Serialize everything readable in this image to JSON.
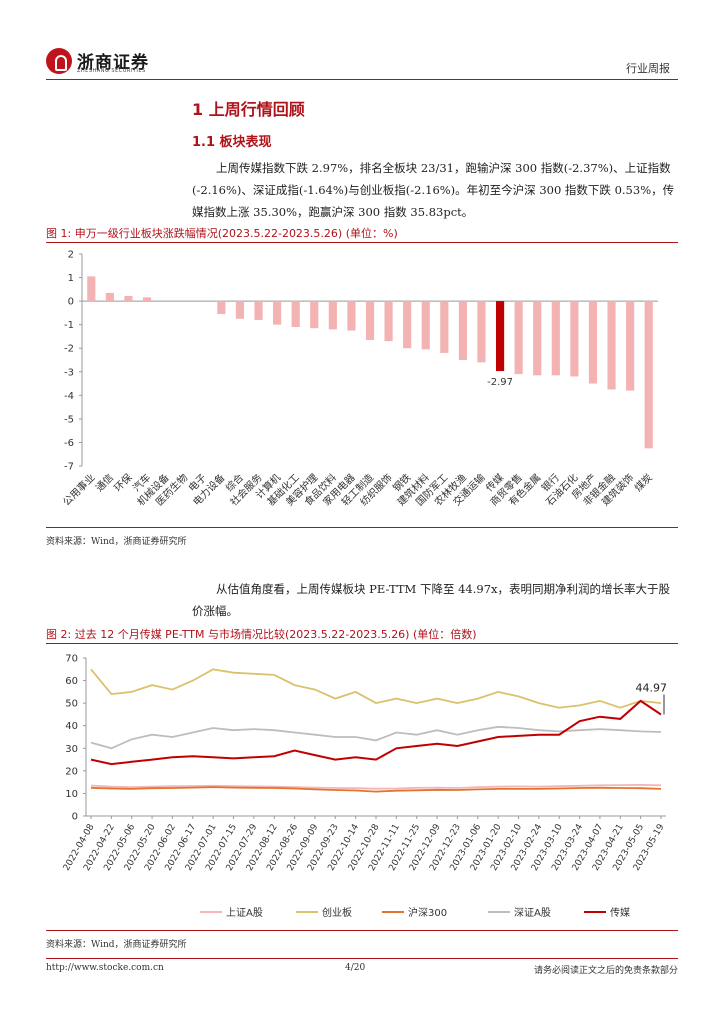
{
  "header": {
    "logo_cn": "浙商证券",
    "logo_en": "ZHESHANG SECURITIES",
    "report_type": "行业周报"
  },
  "section1": {
    "title": "1 上周行情回顾"
  },
  "section11": {
    "title": "1.1 板块表现"
  },
  "para1": "上周传媒指数下跌 2.97%，排名全板块 23/31，跑输沪深 300 指数(-2.37%)、上证指数(-2.16%)、深证成指(-1.64%)与创业板指(-2.16%)。年初至今沪深 300 指数下跌 0.53%，传媒指数上涨 35.30%，跑赢沪深 300 指数 35.83pct。",
  "fig1": {
    "caption": "图 1:   申万一级行业板块涨跌幅情况(2023.5.22-2023.5.26) (单位：%)",
    "source": "资料来源：Wind，浙商证券研究所"
  },
  "para2": "从估值角度看，上周传媒板块 PE-TTM 下降至 44.97x，表明同期净利润的增长率大于股价涨幅。",
  "fig2": {
    "caption": "图 2:   过去 12 个月传媒 PE-TTM 与市场情况比较(2023.5.22-2023.5.26) (单位：倍数)",
    "source": "资料来源：Wind，浙商证券研究所"
  },
  "footer": {
    "url": "http://www.stocke.com.cn",
    "page": "4/20",
    "disclaimer": "请务必阅读正文之后的免责条款部分"
  },
  "colors": {
    "brand_red": "#b0121a",
    "bar_light": "#f4b3b3",
    "bar_dark": "#c00000"
  },
  "chart_data": [
    {
      "type": "bar",
      "title": "申万一级行业板块涨跌幅情况(2023.5.22-2023.5.26)",
      "ylabel": "%",
      "ylim": [
        -7,
        2
      ],
      "yticks": [
        2,
        1,
        0,
        -1,
        -2,
        -3,
        -4,
        -5,
        -6,
        -7
      ],
      "categories": [
        "公用事业",
        "通信",
        "环保",
        "汽车",
        "机械设备",
        "医药生物",
        "电子",
        "电力设备",
        "综合",
        "社会服务",
        "计算机",
        "基础化工",
        "美容护理",
        "食品饮料",
        "家用电器",
        "轻工制造",
        "纺织服饰",
        "钢铁",
        "建筑材料",
        "国防军工",
        "农林牧渔",
        "交通运输",
        "传媒",
        "商贸零售",
        "有色金属",
        "银行",
        "石油石化",
        "房地产",
        "非银金融",
        "建筑装饰",
        "煤炭"
      ],
      "values": [
        1.05,
        0.35,
        0.22,
        0.16,
        0.0,
        0.0,
        0.0,
        -0.55,
        -0.75,
        -0.8,
        -1.0,
        -1.1,
        -1.15,
        -1.2,
        -1.25,
        -1.65,
        -1.7,
        -2.0,
        -2.05,
        -2.2,
        -2.5,
        -2.6,
        -2.97,
        -3.1,
        -3.15,
        -3.15,
        -3.2,
        -3.5,
        -3.75,
        -3.8,
        -6.25
      ],
      "highlight": "传媒",
      "highlight_label": "-2.97"
    },
    {
      "type": "line",
      "title": "过去12个月传媒 PE-TTM 与市场情况比较",
      "ylim": [
        0,
        70
      ],
      "yticks": [
        0,
        10,
        20,
        30,
        40,
        50,
        60,
        70
      ],
      "x_ticks": [
        "2022-04-08",
        "2022-04-22",
        "2022-05-06",
        "2022-05-20",
        "2022-06-02",
        "2022-06-17",
        "2022-07-01",
        "2022-07-15",
        "2022-07-29",
        "2022-08-12",
        "2022-08-26",
        "2022-09-09",
        "2022-09-23",
        "2022-10-14",
        "2022-10-28",
        "2022-11-11",
        "2022-11-25",
        "2022-12-09",
        "2022-12-23",
        "2023-01-06",
        "2023-01-20",
        "2023-02-10",
        "2023-02-24",
        "2023-03-10",
        "2023-03-24",
        "2023-04-07",
        "2023-04-21",
        "2023-05-05",
        "2023-05-19"
      ],
      "end_label": "44.97",
      "series": [
        {
          "name": "上证A股",
          "color": "#f4b6b6",
          "values": [
            13.5,
            13,
            12.8,
            13,
            13.2,
            13.3,
            13.4,
            13.2,
            13.1,
            13,
            12.8,
            12.6,
            12.4,
            12.3,
            12.1,
            12.2,
            12.5,
            12.6,
            12.4,
            12.8,
            13,
            13.1,
            13,
            13.2,
            13.4,
            13.6,
            13.7,
            13.8,
            13.6
          ]
        },
        {
          "name": "创业板",
          "color": "#dcc16c",
          "values": [
            65,
            54,
            55,
            58,
            56,
            60,
            65,
            63.5,
            63,
            62.5,
            58,
            56,
            52,
            55,
            50,
            52,
            50,
            52,
            50,
            52,
            55,
            53,
            50,
            48,
            49,
            51,
            48,
            51,
            50
          ]
        },
        {
          "name": "沪深300",
          "color": "#e3742f",
          "values": [
            12.5,
            12.2,
            12,
            12.3,
            12.4,
            12.6,
            12.8,
            12.6,
            12.5,
            12.4,
            12.2,
            11.8,
            11.5,
            11.3,
            10.8,
            11.2,
            11.4,
            11.6,
            11.5,
            11.8,
            12,
            12,
            12,
            12.2,
            12.4,
            12.5,
            12.4,
            12.3,
            12
          ]
        },
        {
          "name": "深证A股",
          "color": "#bdbdbd",
          "values": [
            32.5,
            30,
            34,
            36,
            35,
            37,
            39,
            38,
            38.5,
            38,
            37,
            36,
            35,
            35,
            33.5,
            37,
            36,
            38,
            36,
            38,
            39.5,
            39,
            38,
            37.5,
            38,
            38.5,
            38,
            37.5,
            37.2
          ]
        },
        {
          "name": "传媒",
          "color": "#c00000",
          "values": [
            25,
            23,
            24,
            25,
            26,
            26.5,
            26,
            25.5,
            26,
            26.5,
            29,
            27,
            25,
            26,
            25,
            30,
            31,
            32,
            31,
            33,
            35,
            35.5,
            36,
            36,
            42,
            44,
            43,
            51,
            44.97
          ]
        }
      ]
    }
  ]
}
